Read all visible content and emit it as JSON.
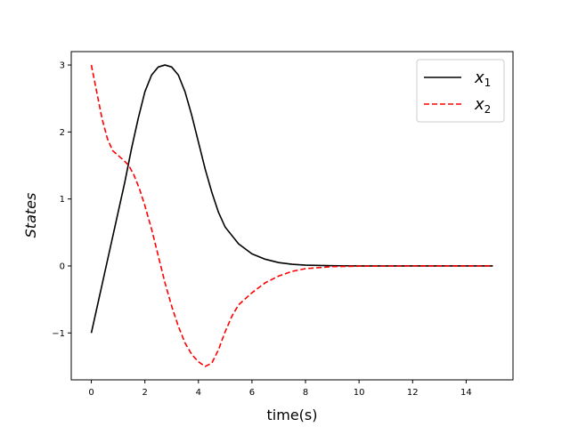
{
  "chart_data": {
    "type": "line",
    "xlabel": "time(s)",
    "ylabel": "States",
    "xlim": [
      -0.75,
      15.75
    ],
    "ylim": [
      -1.7,
      3.2
    ],
    "xticks": [
      0,
      2,
      4,
      6,
      8,
      10,
      12,
      14
    ],
    "yticks": [
      -1,
      0,
      1,
      2,
      3
    ],
    "ytick_labels": [
      "−1",
      "0",
      "1",
      "2",
      "3"
    ],
    "grid": false,
    "legend_position": "top-right",
    "series": [
      {
        "name": "x",
        "subscript": "1",
        "color": "#000000",
        "linestyle": "solid",
        "points": [
          [
            0,
            -1.0
          ],
          [
            0.25,
            -0.55
          ],
          [
            0.5,
            -0.1
          ],
          [
            0.75,
            0.35
          ],
          [
            1.0,
            0.8
          ],
          [
            1.25,
            1.25
          ],
          [
            1.5,
            1.75
          ],
          [
            1.75,
            2.2
          ],
          [
            2.0,
            2.6
          ],
          [
            2.25,
            2.85
          ],
          [
            2.5,
            2.97
          ],
          [
            2.75,
            3.0
          ],
          [
            3.0,
            2.97
          ],
          [
            3.25,
            2.85
          ],
          [
            3.5,
            2.6
          ],
          [
            3.75,
            2.25
          ],
          [
            4.0,
            1.85
          ],
          [
            4.25,
            1.45
          ],
          [
            4.5,
            1.1
          ],
          [
            4.75,
            0.8
          ],
          [
            5.0,
            0.58
          ],
          [
            5.5,
            0.33
          ],
          [
            6.0,
            0.18
          ],
          [
            6.5,
            0.1
          ],
          [
            7.0,
            0.05
          ],
          [
            7.5,
            0.025
          ],
          [
            8.0,
            0.012
          ],
          [
            9.0,
            0.004
          ],
          [
            10.0,
            0.001
          ],
          [
            12.0,
            0.0
          ],
          [
            15.0,
            0.0
          ]
        ]
      },
      {
        "name": "x",
        "subscript": "2",
        "color": "#ff0000",
        "linestyle": "dashed",
        "points": [
          [
            0,
            3.0
          ],
          [
            0.2,
            2.6
          ],
          [
            0.4,
            2.2
          ],
          [
            0.6,
            1.9
          ],
          [
            0.8,
            1.72
          ],
          [
            1.0,
            1.65
          ],
          [
            1.2,
            1.58
          ],
          [
            1.4,
            1.5
          ],
          [
            1.6,
            1.35
          ],
          [
            1.8,
            1.15
          ],
          [
            2.0,
            0.9
          ],
          [
            2.25,
            0.55
          ],
          [
            2.5,
            0.15
          ],
          [
            2.75,
            -0.25
          ],
          [
            3.0,
            -0.6
          ],
          [
            3.25,
            -0.9
          ],
          [
            3.5,
            -1.15
          ],
          [
            3.75,
            -1.32
          ],
          [
            4.0,
            -1.43
          ],
          [
            4.25,
            -1.5
          ],
          [
            4.5,
            -1.45
          ],
          [
            4.75,
            -1.25
          ],
          [
            5.0,
            -0.98
          ],
          [
            5.25,
            -0.75
          ],
          [
            5.5,
            -0.58
          ],
          [
            6.0,
            -0.4
          ],
          [
            6.5,
            -0.25
          ],
          [
            7.0,
            -0.15
          ],
          [
            7.5,
            -0.08
          ],
          [
            8.0,
            -0.04
          ],
          [
            9.0,
            -0.01
          ],
          [
            10.0,
            -0.003
          ],
          [
            12.0,
            0.0
          ],
          [
            15.0,
            0.0
          ]
        ]
      }
    ]
  }
}
